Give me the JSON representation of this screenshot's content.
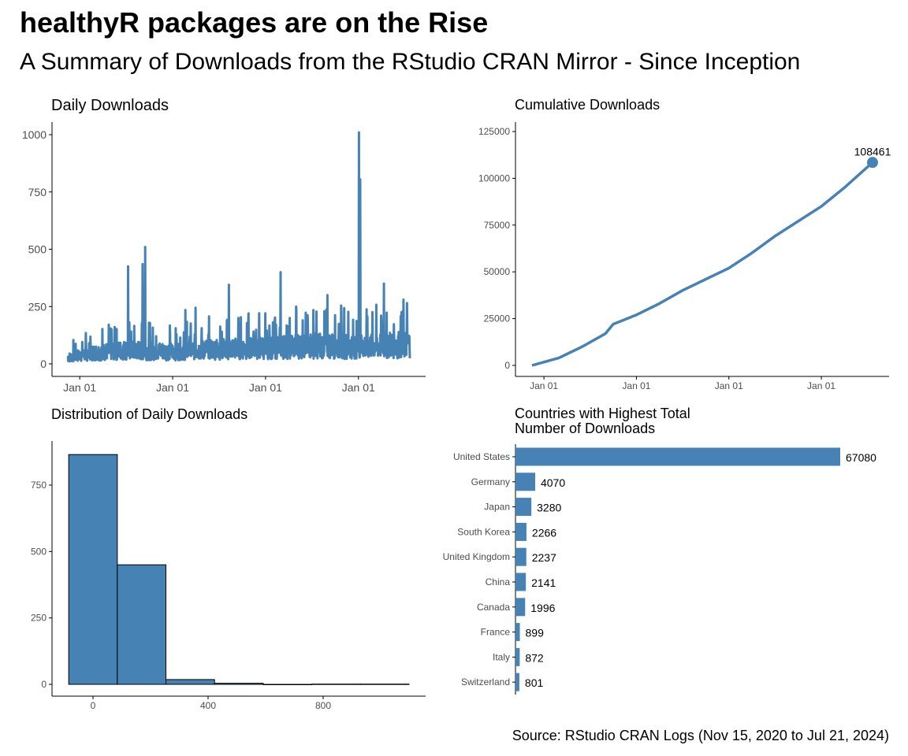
{
  "header": {
    "title": "healthyR packages are on the Rise",
    "subtitle": "A Summary of Downloads from the RStudio CRAN Mirror - Since Inception"
  },
  "caption": "Source: RStudio CRAN Logs (Nov 15, 2020 to Jul 21, 2024)",
  "colors": {
    "series": "#4682b4",
    "axis": "#000000",
    "tick_text": "#4d4d4d"
  },
  "chart_data": [
    {
      "type": "line",
      "title": "Daily Downloads",
      "xlabel": "",
      "ylabel": "",
      "x_range": [
        "2020-11-15",
        "2024-07-21"
      ],
      "ylim": [
        0,
        1050
      ],
      "y_ticks": [
        0,
        250,
        500,
        750,
        1000
      ],
      "x_ticks": [
        "2021-01-01",
        "2022-01-01",
        "2023-01-01",
        "2024-01-01"
      ],
      "x_tick_labels": [
        "Jan 01",
        "Jan 01",
        "Jan 01",
        "Jan 01"
      ],
      "baseline": {
        "x": [
          "2020-11-15",
          "2021-03-01",
          "2021-07-01",
          "2022-01-01",
          "2022-07-01",
          "2023-01-01",
          "2023-07-01",
          "2024-01-01",
          "2024-07-21"
        ],
        "y": [
          25,
          45,
          55,
          50,
          60,
          65,
          75,
          70,
          80
        ]
      },
      "spikes": [
        {
          "x": "2021-07-10",
          "y": 425
        },
        {
          "x": "2021-09-05",
          "y": 435
        },
        {
          "x": "2021-09-15",
          "y": 510
        },
        {
          "x": "2022-02-20",
          "y": 235
        },
        {
          "x": "2022-04-01",
          "y": 245
        },
        {
          "x": "2022-08-10",
          "y": 345
        },
        {
          "x": "2023-03-01",
          "y": 400
        },
        {
          "x": "2023-05-01",
          "y": 250
        },
        {
          "x": "2023-09-01",
          "y": 300
        },
        {
          "x": "2024-01-03",
          "y": 1010
        },
        {
          "x": "2024-01-08",
          "y": 805
        },
        {
          "x": "2024-04-10",
          "y": 350
        },
        {
          "x": "2024-07-10",
          "y": 265
        }
      ],
      "grid": false
    },
    {
      "type": "line",
      "title": "Cumulative Downloads",
      "xlabel": "",
      "ylabel": "",
      "x_range": [
        "2020-11-15",
        "2024-07-21"
      ],
      "ylim": [
        0,
        130000
      ],
      "y_ticks": [
        0,
        25000,
        50000,
        75000,
        100000,
        125000
      ],
      "x_ticks": [
        "2021-01-01",
        "2022-01-01",
        "2023-01-01",
        "2024-01-01"
      ],
      "x_tick_labels": [
        "Jan 01",
        "Jan 01",
        "Jan 01",
        "Jan 01"
      ],
      "x": [
        "2020-11-15",
        "2021-03-01",
        "2021-06-01",
        "2021-09-01",
        "2021-10-01",
        "2022-01-01",
        "2022-04-01",
        "2022-07-01",
        "2022-10-01",
        "2023-01-01",
        "2023-04-01",
        "2023-07-01",
        "2023-10-01",
        "2024-01-01",
        "2024-04-01",
        "2024-07-21"
      ],
      "y": [
        0,
        4000,
        10000,
        17000,
        22000,
        27000,
        33000,
        40000,
        46000,
        52000,
        60000,
        69000,
        77000,
        85000,
        95000,
        108461
      ],
      "end_label": "108461",
      "grid": false
    },
    {
      "type": "bar",
      "title": "Distribution of Daily Downloads",
      "xlabel": "",
      "ylabel": "",
      "bins": [
        {
          "start": -84.5,
          "end": 84.5,
          "count": 865
        },
        {
          "start": 84.5,
          "end": 253.5,
          "count": 450
        },
        {
          "start": 253.5,
          "end": 422.5,
          "count": 18
        },
        {
          "start": 422.5,
          "end": 591.5,
          "count": 4
        },
        {
          "start": 591.5,
          "end": 760.5,
          "count": 0
        },
        {
          "start": 760.5,
          "end": 929.5,
          "count": 1
        },
        {
          "start": 929.5,
          "end": 1098.5,
          "count": 1
        }
      ],
      "xlim": [
        -130,
        1150
      ],
      "ylim": [
        0,
        910
      ],
      "x_ticks": [
        0,
        400,
        800
      ],
      "y_ticks": [
        0,
        250,
        500,
        750
      ],
      "grid": false
    },
    {
      "type": "bar",
      "orientation": "horizontal",
      "title": "Countries with Highest Total\nNumber of Downloads",
      "xlabel": "",
      "ylabel": "",
      "categories": [
        "United States",
        "Germany",
        "Japan",
        "South Korea",
        "United Kingdom",
        "China",
        "Canada",
        "France",
        "Italy",
        "Switzerland"
      ],
      "values": [
        67080,
        4070,
        3280,
        2266,
        2237,
        2141,
        1996,
        899,
        872,
        801
      ],
      "xlim": [
        0,
        67080
      ],
      "grid": false
    }
  ]
}
